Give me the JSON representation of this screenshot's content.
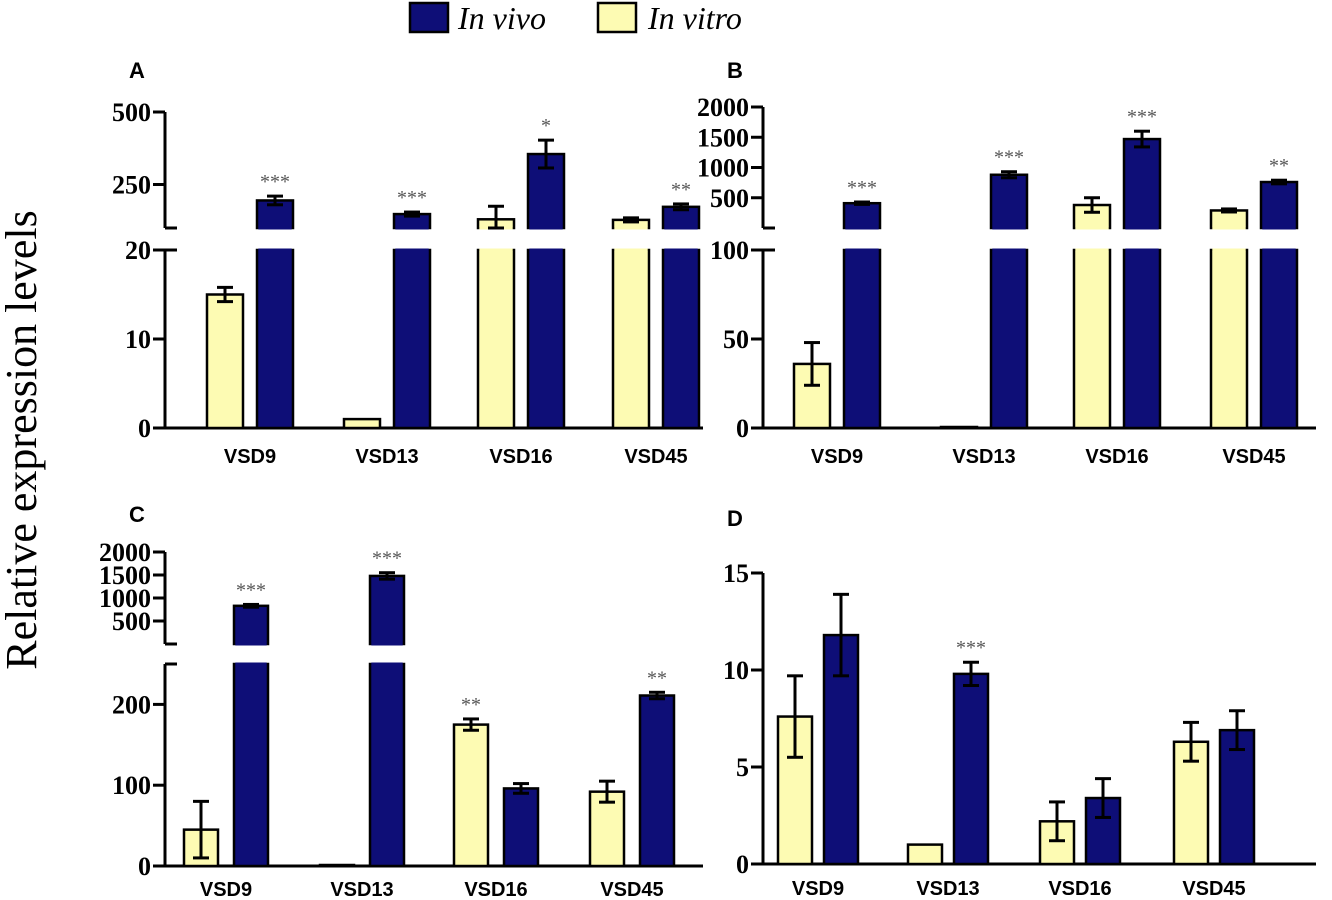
{
  "legend": [
    {
      "label": "In vivo",
      "color": "#0e0e77"
    },
    {
      "label": "In vitro",
      "color": "#fdfbb3"
    }
  ],
  "ylabel": "Relative expression levels",
  "chart_data": [
    {
      "panel": "A",
      "type": "bar",
      "categories": [
        "VSD9",
        "VSD13",
        "VSD16",
        "VSD45"
      ],
      "series": [
        {
          "name": "In vitro",
          "values": [
            15,
            1,
            130,
            128
          ],
          "errors": [
            0.8,
            0,
            45,
            7
          ]
        },
        {
          "name": "In vivo",
          "values": [
            195,
            148,
            355,
            173
          ],
          "errors": [
            15,
            7,
            48,
            10
          ]
        }
      ],
      "significance": [
        "***",
        "***",
        "*",
        "**"
      ],
      "axis_segments": [
        {
          "range": [
            0,
            20
          ],
          "ticks": [
            0,
            10,
            20
          ],
          "tick_labels": [
            "0",
            "10",
            "20"
          ]
        },
        {
          "range": [
            100,
            500
          ],
          "ticks": [
            250,
            500
          ],
          "tick_labels": [
            "250",
            "500"
          ]
        }
      ]
    },
    {
      "panel": "B",
      "type": "bar",
      "categories": [
        "VSD9",
        "VSD13",
        "VSD16",
        "VSD45"
      ],
      "series": [
        {
          "name": "In vitro",
          "values": [
            36,
            0.5,
            380,
            290
          ],
          "errors": [
            12,
            0,
            120,
            25
          ]
        },
        {
          "name": "In vivo",
          "values": [
            410,
            880,
            1470,
            760
          ],
          "errors": [
            20,
            50,
            130,
            30
          ]
        }
      ],
      "significance": [
        "***",
        "***",
        "***",
        "**"
      ],
      "axis_segments": [
        {
          "range": [
            0,
            100
          ],
          "ticks": [
            0,
            50,
            100
          ],
          "tick_labels": [
            "0",
            "50",
            "100"
          ]
        },
        {
          "range": [
            0,
            2000
          ],
          "ticks": [
            500,
            1000,
            1500,
            2000
          ],
          "tick_labels": [
            "500",
            "1000",
            "1500",
            "2000"
          ]
        }
      ]
    },
    {
      "panel": "C",
      "type": "bar",
      "categories": [
        "VSD9",
        "VSD13",
        "VSD16",
        "VSD45"
      ],
      "series": [
        {
          "name": "In vitro",
          "values": [
            45,
            0.5,
            175,
            92
          ],
          "errors": [
            35,
            0,
            7,
            13
          ]
        },
        {
          "name": "In vivo",
          "values": [
            830,
            1480,
            96,
            211
          ],
          "errors": [
            30,
            70,
            6,
            4
          ]
        }
      ],
      "significance_vitro": [
        "",
        "",
        "**",
        ""
      ],
      "significance": [
        "***",
        "***",
        "",
        "**"
      ],
      "axis_segments": [
        {
          "range": [
            0,
            250
          ],
          "ticks": [
            0,
            100,
            200
          ],
          "tick_labels": [
            "0",
            "100",
            "200"
          ]
        },
        {
          "range": [
            0,
            2000
          ],
          "ticks": [
            500,
            1000,
            1500,
            2000
          ],
          "tick_labels": [
            "500",
            "1000",
            "1500",
            "2000"
          ]
        }
      ]
    },
    {
      "panel": "D",
      "type": "bar",
      "categories": [
        "VSD9",
        "VSD13",
        "VSD16",
        "VSD45"
      ],
      "series": [
        {
          "name": "In vitro",
          "values": [
            7.6,
            1.0,
            2.2,
            6.3
          ],
          "errors": [
            2.1,
            0,
            1.0,
            1.0
          ]
        },
        {
          "name": "In vivo",
          "values": [
            11.8,
            9.8,
            3.4,
            6.9
          ],
          "errors": [
            2.1,
            0.6,
            1.0,
            1.0
          ]
        }
      ],
      "significance": [
        "",
        "***",
        "",
        ""
      ],
      "axis_segments": [
        {
          "range": [
            0,
            15
          ],
          "ticks": [
            0,
            5,
            10,
            15
          ],
          "tick_labels": [
            "0",
            "5",
            "10",
            "15"
          ]
        }
      ]
    }
  ]
}
